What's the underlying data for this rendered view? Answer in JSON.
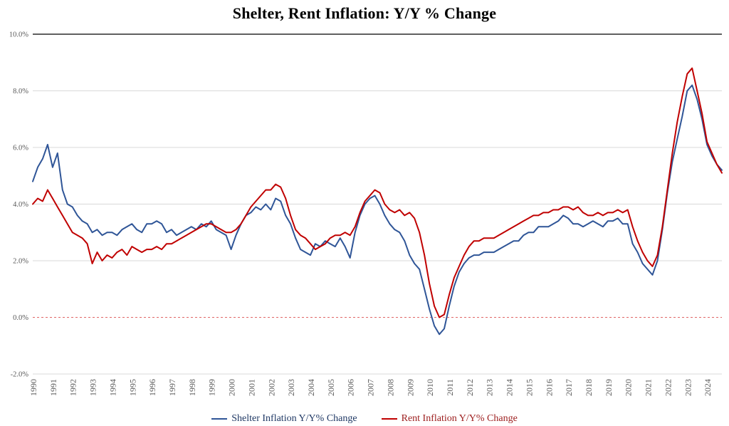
{
  "title": "Shelter, Rent Inflation: Y/Y % Change",
  "colors": {
    "background": "#FFFFFF",
    "grid": "#D9D9D9",
    "top_border": "#000000",
    "zero_line": "#E06666",
    "axis_text": "#595959",
    "title_text": "#000000",
    "legend_shelter_text": "#1F3864",
    "legend_rent_text": "#9C1C1C"
  },
  "chart_data": {
    "type": "line",
    "title": "Shelter, Rent Inflation: Y/Y % Change",
    "x_start": 1990,
    "x_step": 0.25,
    "x_unit": "year (quarterly samples)",
    "x_tick_labels": [
      "1990",
      "1991",
      "1992",
      "1993",
      "1994",
      "1995",
      "1996",
      "1997",
      "1998",
      "1999",
      "2000",
      "2001",
      "2002",
      "2003",
      "2004",
      "2005",
      "2006",
      "2007",
      "2008",
      "2009",
      "2010",
      "2011",
      "2012",
      "2013",
      "2014",
      "2015",
      "2016",
      "2017",
      "2018",
      "2019",
      "2020",
      "2021",
      "2022",
      "2023",
      "2024"
    ],
    "ylim": [
      -2,
      10
    ],
    "y_ticks": [
      10,
      8,
      6,
      4,
      2,
      0,
      -2
    ],
    "y_tick_labels": [
      "10.0%",
      "8.0%",
      "6.0%",
      "4.0%",
      "2.0%",
      "0.0%",
      "-2.0%"
    ],
    "grid": "horizontal",
    "legend_position": "bottom",
    "zero_line": {
      "value": 0,
      "style": "dashed",
      "color": "#E06666"
    },
    "series": [
      {
        "name": "Shelter Inflation Y/Y% Change",
        "color": "#2F5597",
        "values": [
          4.8,
          5.3,
          5.6,
          6.1,
          5.3,
          5.8,
          4.5,
          4.0,
          3.9,
          3.6,
          3.4,
          3.3,
          3.0,
          3.1,
          2.9,
          3.0,
          3.0,
          2.9,
          3.1,
          3.2,
          3.3,
          3.1,
          3.0,
          3.3,
          3.3,
          3.4,
          3.3,
          3.0,
          3.1,
          2.9,
          3.0,
          3.1,
          3.2,
          3.1,
          3.3,
          3.2,
          3.4,
          3.1,
          3.0,
          2.9,
          2.4,
          2.9,
          3.3,
          3.6,
          3.7,
          3.9,
          3.8,
          4.0,
          3.8,
          4.2,
          4.1,
          3.6,
          3.3,
          2.8,
          2.4,
          2.3,
          2.2,
          2.6,
          2.5,
          2.7,
          2.6,
          2.5,
          2.8,
          2.5,
          2.1,
          3.0,
          3.6,
          4.0,
          4.2,
          4.3,
          4.0,
          3.6,
          3.3,
          3.1,
          3.0,
          2.7,
          2.2,
          1.9,
          1.7,
          1.0,
          0.3,
          -0.3,
          -0.6,
          -0.4,
          0.4,
          1.1,
          1.6,
          1.9,
          2.1,
          2.2,
          2.2,
          2.3,
          2.3,
          2.3,
          2.4,
          2.5,
          2.6,
          2.7,
          2.7,
          2.9,
          3.0,
          3.0,
          3.2,
          3.2,
          3.2,
          3.3,
          3.4,
          3.6,
          3.5,
          3.3,
          3.3,
          3.2,
          3.3,
          3.4,
          3.3,
          3.2,
          3.4,
          3.4,
          3.5,
          3.3,
          3.3,
          2.6,
          2.3,
          1.9,
          1.7,
          1.5,
          2.0,
          3.1,
          4.4,
          5.5,
          6.3,
          7.1,
          8.0,
          8.2,
          7.7,
          7.0,
          6.1,
          5.7,
          5.4,
          5.2
        ]
      },
      {
        "name": "Rent Inflation Y/Y% Change",
        "color": "#C00000",
        "values": [
          4.0,
          4.2,
          4.1,
          4.5,
          4.2,
          3.9,
          3.6,
          3.3,
          3.0,
          2.9,
          2.8,
          2.6,
          1.9,
          2.3,
          2.0,
          2.2,
          2.1,
          2.3,
          2.4,
          2.2,
          2.5,
          2.4,
          2.3,
          2.4,
          2.4,
          2.5,
          2.4,
          2.6,
          2.6,
          2.7,
          2.8,
          2.9,
          3.0,
          3.1,
          3.2,
          3.3,
          3.3,
          3.2,
          3.1,
          3.0,
          3.0,
          3.1,
          3.3,
          3.6,
          3.9,
          4.1,
          4.3,
          4.5,
          4.5,
          4.7,
          4.6,
          4.2,
          3.6,
          3.1,
          2.9,
          2.8,
          2.6,
          2.4,
          2.5,
          2.6,
          2.8,
          2.9,
          2.9,
          3.0,
          2.9,
          3.2,
          3.7,
          4.1,
          4.3,
          4.5,
          4.4,
          4.0,
          3.8,
          3.7,
          3.8,
          3.6,
          3.7,
          3.5,
          3.0,
          2.2,
          1.2,
          0.4,
          0.0,
          0.1,
          0.8,
          1.4,
          1.8,
          2.2,
          2.5,
          2.7,
          2.7,
          2.8,
          2.8,
          2.8,
          2.9,
          3.0,
          3.1,
          3.2,
          3.3,
          3.4,
          3.5,
          3.6,
          3.6,
          3.7,
          3.7,
          3.8,
          3.8,
          3.9,
          3.9,
          3.8,
          3.9,
          3.7,
          3.6,
          3.6,
          3.7,
          3.6,
          3.7,
          3.7,
          3.8,
          3.7,
          3.8,
          3.2,
          2.7,
          2.3,
          2.0,
          1.8,
          2.2,
          3.2,
          4.5,
          5.8,
          6.9,
          7.8,
          8.6,
          8.8,
          8.0,
          7.2,
          6.2,
          5.8,
          5.4,
          5.1
        ]
      }
    ]
  }
}
